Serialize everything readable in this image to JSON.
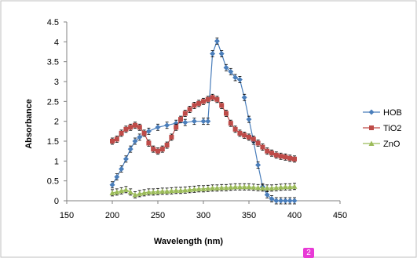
{
  "chart_data": {
    "type": "line",
    "title": "",
    "xlabel": "Wavelength (nm)",
    "ylabel": "Absorbance",
    "xlim": [
      150,
      450
    ],
    "ylim": [
      0,
      4.5
    ],
    "x_ticks": [
      150,
      200,
      250,
      300,
      350,
      400,
      450
    ],
    "y_ticks": [
      0,
      0.5,
      1,
      1.5,
      2,
      2.5,
      3,
      3.5,
      4,
      4.5
    ],
    "x_tick_labels": [
      "150",
      "200",
      "250",
      "300",
      "350",
      "400",
      "450"
    ],
    "y_tick_labels": [
      "0",
      "0.5",
      "1",
      "1.5",
      "2",
      "2.5",
      "3",
      "3.5",
      "4",
      "4.5"
    ],
    "grid": false,
    "legend_position": "right",
    "series": [
      {
        "name": "HOB",
        "color": "#4a7ebb",
        "marker": "diamond",
        "x": [
          200,
          205,
          210,
          215,
          220,
          225,
          230,
          240,
          250,
          260,
          270,
          280,
          290,
          300,
          305,
          310,
          315,
          320,
          325,
          330,
          335,
          340,
          345,
          350,
          355,
          360,
          365,
          370,
          375,
          380,
          385,
          390,
          395,
          400
        ],
        "y": [
          0.4,
          0.6,
          0.8,
          1.05,
          1.3,
          1.5,
          1.6,
          1.75,
          1.85,
          1.9,
          1.95,
          1.97,
          2.0,
          2.0,
          2.0,
          3.7,
          4.02,
          3.7,
          3.35,
          3.25,
          3.1,
          3.05,
          2.6,
          2.05,
          1.5,
          0.9,
          0.35,
          0.15,
          0.05,
          0.0,
          0.0,
          0.0,
          0.0,
          0.0
        ]
      },
      {
        "name": "TiO2",
        "color": "#be4b48",
        "marker": "square",
        "x": [
          200,
          205,
          210,
          215,
          220,
          225,
          230,
          235,
          240,
          245,
          250,
          255,
          260,
          265,
          270,
          275,
          280,
          285,
          290,
          295,
          300,
          305,
          310,
          315,
          320,
          325,
          330,
          335,
          340,
          345,
          350,
          355,
          360,
          365,
          370,
          375,
          380,
          385,
          390,
          395,
          400
        ],
        "y": [
          1.5,
          1.55,
          1.7,
          1.8,
          1.85,
          1.9,
          1.85,
          1.7,
          1.45,
          1.3,
          1.25,
          1.3,
          1.4,
          1.6,
          1.85,
          2.05,
          2.2,
          2.3,
          2.4,
          2.45,
          2.5,
          2.55,
          2.6,
          2.55,
          2.4,
          2.2,
          1.95,
          1.8,
          1.7,
          1.65,
          1.6,
          1.55,
          1.45,
          1.35,
          1.25,
          1.2,
          1.15,
          1.12,
          1.1,
          1.07,
          1.05
        ]
      },
      {
        "name": "ZnO",
        "color": "#9bbb59",
        "marker": "triangle",
        "x": [
          200,
          205,
          210,
          215,
          220,
          225,
          230,
          235,
          240,
          245,
          250,
          255,
          260,
          265,
          270,
          275,
          280,
          285,
          290,
          295,
          300,
          305,
          310,
          315,
          320,
          325,
          330,
          335,
          340,
          345,
          350,
          355,
          360,
          365,
          370,
          375,
          380,
          385,
          390,
          395,
          400
        ],
        "y": [
          0.2,
          0.22,
          0.25,
          0.28,
          0.22,
          0.15,
          0.18,
          0.2,
          0.22,
          0.22,
          0.23,
          0.24,
          0.24,
          0.25,
          0.26,
          0.26,
          0.27,
          0.28,
          0.29,
          0.3,
          0.3,
          0.31,
          0.32,
          0.32,
          0.33,
          0.33,
          0.34,
          0.35,
          0.35,
          0.35,
          0.35,
          0.34,
          0.33,
          0.32,
          0.32,
          0.32,
          0.33,
          0.34,
          0.35,
          0.35,
          0.36
        ]
      }
    ]
  },
  "badge": {
    "text": "2"
  }
}
